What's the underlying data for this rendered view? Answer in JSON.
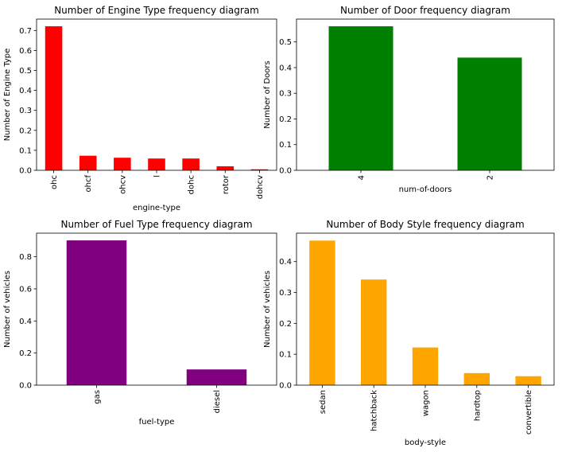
{
  "chart_data": [
    {
      "type": "bar",
      "title": "Number of Engine Type frequency diagram",
      "xlabel": "engine-type",
      "ylabel": "Number of Engine Type",
      "categories": [
        "ohc",
        "ohcf",
        "ohcv",
        "l",
        "dohc",
        "rotor",
        "dohcv"
      ],
      "values": [
        0.721,
        0.073,
        0.063,
        0.059,
        0.059,
        0.02,
        0.005
      ],
      "ylim": [
        0,
        0.757
      ],
      "yticks": [
        "0.0",
        "0.1",
        "0.2",
        "0.3",
        "0.4",
        "0.5",
        "0.6",
        "0.7"
      ],
      "color": "#ff0000",
      "grid": false
    },
    {
      "type": "bar",
      "title": "Number of Door frequency diagram",
      "xlabel": "num-of-doors",
      "ylabel": "Number of Doors",
      "categories": [
        "4",
        "2"
      ],
      "values": [
        0.561,
        0.439
      ],
      "ylim": [
        0,
        0.589
      ],
      "yticks": [
        "0.0",
        "0.1",
        "0.2",
        "0.3",
        "0.4",
        "0.5"
      ],
      "color": "#008000",
      "grid": false
    },
    {
      "type": "bar",
      "title": "Number of Fuel Type frequency diagram",
      "xlabel": "fuel-type",
      "ylabel": "Number of vehicles",
      "categories": [
        "gas",
        "diesel"
      ],
      "values": [
        0.902,
        0.098
      ],
      "ylim": [
        0,
        0.947
      ],
      "yticks": [
        "0.0",
        "0.2",
        "0.4",
        "0.6",
        "0.8"
      ],
      "color": "#800080",
      "grid": false
    },
    {
      "type": "bar",
      "title": "Number of Body Style frequency diagram",
      "xlabel": "body-style",
      "ylabel": "Number of vehicles",
      "categories": [
        "sedan",
        "hatchback",
        "wagon",
        "hardtop",
        "convertible"
      ],
      "values": [
        0.468,
        0.342,
        0.122,
        0.039,
        0.029
      ],
      "ylim": [
        0,
        0.492
      ],
      "yticks": [
        "0.0",
        "0.1",
        "0.2",
        "0.3",
        "0.4"
      ],
      "color": "#ffa500",
      "grid": false
    }
  ]
}
